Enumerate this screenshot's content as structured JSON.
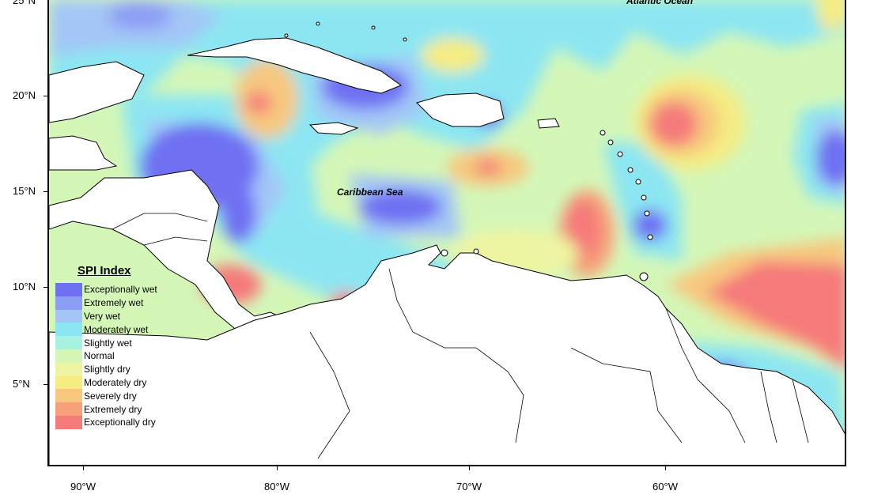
{
  "map": {
    "sea_label": "Caribbean Sea",
    "ocean_label": "Atlantic Ocean",
    "lat_labels": [
      "25°N",
      "20°N",
      "15°N",
      "10°N",
      "5°N"
    ],
    "lon_labels": [
      "90°W",
      "80°W",
      "70°W",
      "60°W"
    ]
  },
  "legend": {
    "title": "SPI Index",
    "items": [
      {
        "label": "Exceptionally wet",
        "color": "#6f6ff2"
      },
      {
        "label": "Extremely wet",
        "color": "#8c9ef5"
      },
      {
        "label": "Very wet",
        "color": "#a3c6f7"
      },
      {
        "label": "Moderately wet",
        "color": "#8ce6f2"
      },
      {
        "label": "Slightly wet",
        "color": "#a6f2e0"
      },
      {
        "label": "Normal",
        "color": "#d4f7b8"
      },
      {
        "label": "Slightly dry",
        "color": "#eef5a2"
      },
      {
        "label": "Moderately dry",
        "color": "#f5ec82"
      },
      {
        "label": "Severely dry",
        "color": "#f7c87e"
      },
      {
        "label": "Extremely dry",
        "color": "#f7a178"
      },
      {
        "label": "Exceptionally dry",
        "color": "#f57a7a"
      }
    ]
  }
}
